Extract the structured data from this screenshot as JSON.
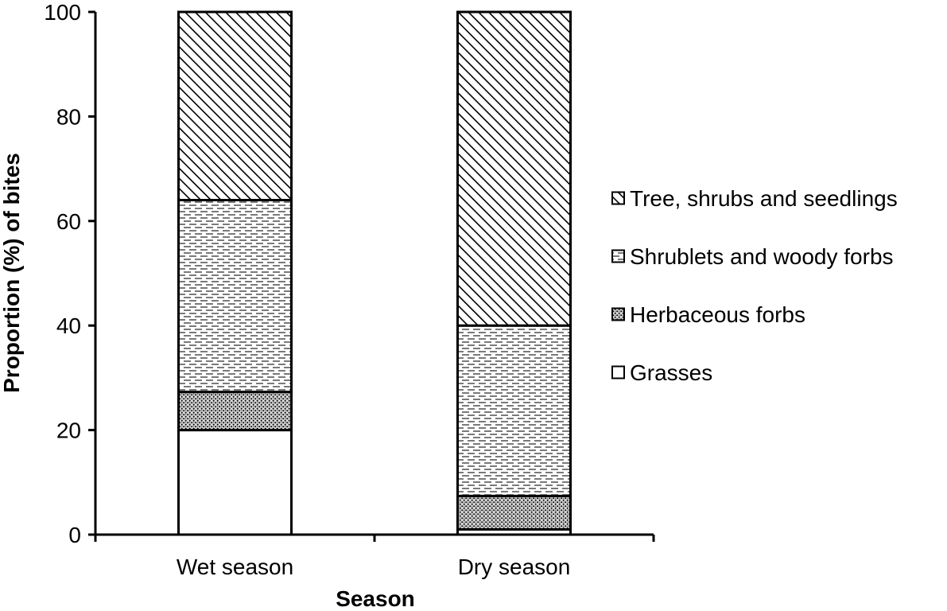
{
  "chart_data": {
    "type": "bar",
    "stacked": true,
    "categories": [
      "Wet season",
      "Dry season"
    ],
    "series": [
      {
        "name": "Grasses",
        "values": [
          20,
          1
        ],
        "pattern": "solid-white"
      },
      {
        "name": "Herbaceous forbs",
        "values": [
          7.3,
          6.4
        ],
        "pattern": "stipple"
      },
      {
        "name": "Shrublets and woody forbs",
        "values": [
          36.7,
          32.6
        ],
        "pattern": "dashed-horizontal"
      },
      {
        "name": "Tree, shrubs and seedlings",
        "values": [
          36,
          60
        ],
        "pattern": "diagonal-hatch"
      }
    ],
    "title": "",
    "xlabel": "Season",
    "ylabel": "Proportion (%)  of bites",
    "ylim": [
      0,
      100
    ],
    "yticks": [
      0,
      20,
      40,
      60,
      80,
      100
    ],
    "grid": false,
    "legend_position": "right",
    "colors": {
      "stroke": "#000000",
      "fill": "#ffffff"
    }
  }
}
